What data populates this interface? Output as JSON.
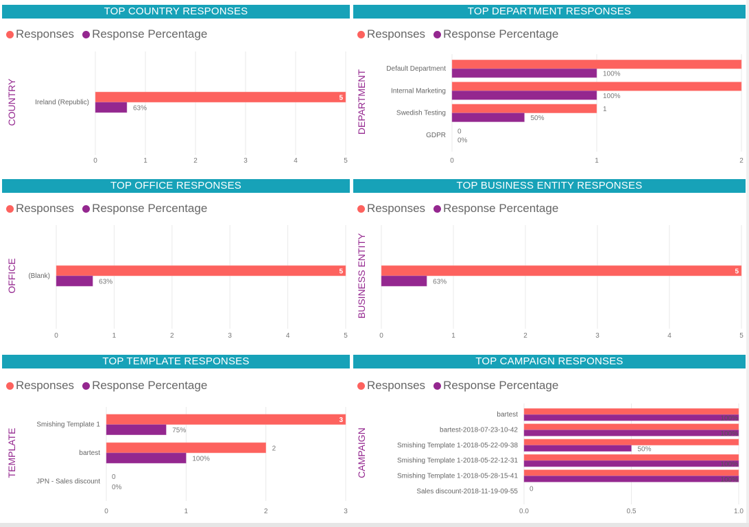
{
  "legend": {
    "responses": "Responses",
    "percentage": "Response Percentage"
  },
  "colors": {
    "header": "#17a2b8",
    "responses": "#fd625e",
    "percentage": "#94278f",
    "axis_title": "#94278f"
  },
  "chart_data": [
    {
      "id": "country",
      "type": "bar",
      "orientation": "horizontal",
      "title": "TOP COUNTRY RESPONSES",
      "ylabel": "COUNTRY",
      "xlim": [
        0,
        5
      ],
      "ticks": [
        "0",
        "1",
        "2",
        "3",
        "4",
        "5"
      ],
      "tick_values": [
        0,
        1,
        2,
        3,
        4,
        5
      ],
      "grid": true,
      "rows": [
        {
          "label": "Ireland (Republic)",
          "responses": 5,
          "percentage": 0.63,
          "responses_label": "5",
          "percentage_label": "63%"
        }
      ]
    },
    {
      "id": "department",
      "type": "bar",
      "orientation": "horizontal",
      "title": "TOP DEPARTMENT RESPONSES",
      "ylabel": "DEPARTMENT",
      "xlim": [
        0,
        2
      ],
      "ticks": [
        "0",
        "1",
        "2"
      ],
      "tick_values": [
        0,
        1,
        2
      ],
      "grid": true,
      "rows": [
        {
          "label": "Default Department",
          "responses": 2,
          "percentage": 1,
          "responses_label": null,
          "percentage_label": "100%"
        },
        {
          "label": "Internal Marketing",
          "responses": 2,
          "percentage": 1,
          "responses_label": null,
          "percentage_label": "100%"
        },
        {
          "label": "Swedish Testing",
          "responses": 1,
          "percentage": 0.5,
          "responses_label": "1",
          "percentage_label": "50%"
        },
        {
          "label": "GDPR",
          "responses": 0,
          "percentage": 0,
          "responses_label": "0",
          "percentage_label": "0%"
        }
      ]
    },
    {
      "id": "office",
      "type": "bar",
      "orientation": "horizontal",
      "title": "TOP OFFICE RESPONSES",
      "ylabel": "OFFICE",
      "xlim": [
        0,
        5
      ],
      "ticks": [
        "0",
        "1",
        "2",
        "3",
        "4",
        "5"
      ],
      "tick_values": [
        0,
        1,
        2,
        3,
        4,
        5
      ],
      "grid": true,
      "rows": [
        {
          "label": "(Blank)",
          "responses": 5,
          "percentage": 0.63,
          "responses_label": "5",
          "percentage_label": "63%"
        }
      ]
    },
    {
      "id": "business",
      "type": "bar",
      "orientation": "horizontal",
      "title": "TOP BUSINESS ENTITY RESPONSES",
      "ylabel": "BUSINESS ENTITY",
      "xlim": [
        0,
        5
      ],
      "ticks": [
        "0",
        "1",
        "2",
        "3",
        "4",
        "5"
      ],
      "tick_values": [
        0,
        1,
        2,
        3,
        4,
        5
      ],
      "grid": true,
      "rows": [
        {
          "label": "",
          "responses": 5,
          "percentage": 0.63,
          "responses_label": "5",
          "percentage_label": "63%"
        }
      ]
    },
    {
      "id": "template",
      "type": "bar",
      "orientation": "horizontal",
      "title": "TOP TEMPLATE RESPONSES",
      "ylabel": "TEMPLATE",
      "xlim": [
        0,
        3
      ],
      "ticks": [
        "0",
        "1",
        "2",
        "3"
      ],
      "tick_values": [
        0,
        1,
        2,
        3
      ],
      "grid": true,
      "rows": [
        {
          "label": "Smishing Template 1",
          "responses": 3,
          "percentage": 0.75,
          "responses_label": "3",
          "percentage_label": "75%"
        },
        {
          "label": "bartest",
          "responses": 2,
          "percentage": 1,
          "responses_label": "2",
          "percentage_label": "100%"
        },
        {
          "label": "JPN - Sales discount",
          "responses": 0,
          "percentage": 0,
          "responses_label": "0",
          "percentage_label": "0%"
        }
      ]
    },
    {
      "id": "campaign",
      "type": "bar",
      "orientation": "horizontal",
      "title": "TOP CAMPAIGN RESPONSES",
      "ylabel": "CAMPAIGN",
      "xlim": [
        0,
        1
      ],
      "ticks": [
        "0.0",
        "0.5",
        "1.0"
      ],
      "tick_values": [
        0,
        0.5,
        1
      ],
      "grid": true,
      "rows": [
        {
          "label": "bartest",
          "responses": 1,
          "percentage": 1,
          "responses_label": null,
          "percentage_label": "100%"
        },
        {
          "label": "bartest-2018-07-23-10-42",
          "responses": 1,
          "percentage": 1,
          "responses_label": null,
          "percentage_label": "100%"
        },
        {
          "label": "Smishing Template 1-2018-05-22-09-38",
          "responses": 1,
          "percentage": 0.5,
          "responses_label": null,
          "percentage_label": "50%"
        },
        {
          "label": "Smishing Template 1-2018-05-22-12-31",
          "responses": 1,
          "percentage": 1,
          "responses_label": null,
          "percentage_label": "100%"
        },
        {
          "label": "Smishing Template 1-2018-05-28-15-41",
          "responses": 1,
          "percentage": 1,
          "responses_label": null,
          "percentage_label": "100%"
        },
        {
          "label": "Sales discount-2018-11-19-09-55",
          "responses": 0,
          "percentage": 0,
          "responses_label": "0",
          "percentage_label": null
        }
      ]
    }
  ]
}
